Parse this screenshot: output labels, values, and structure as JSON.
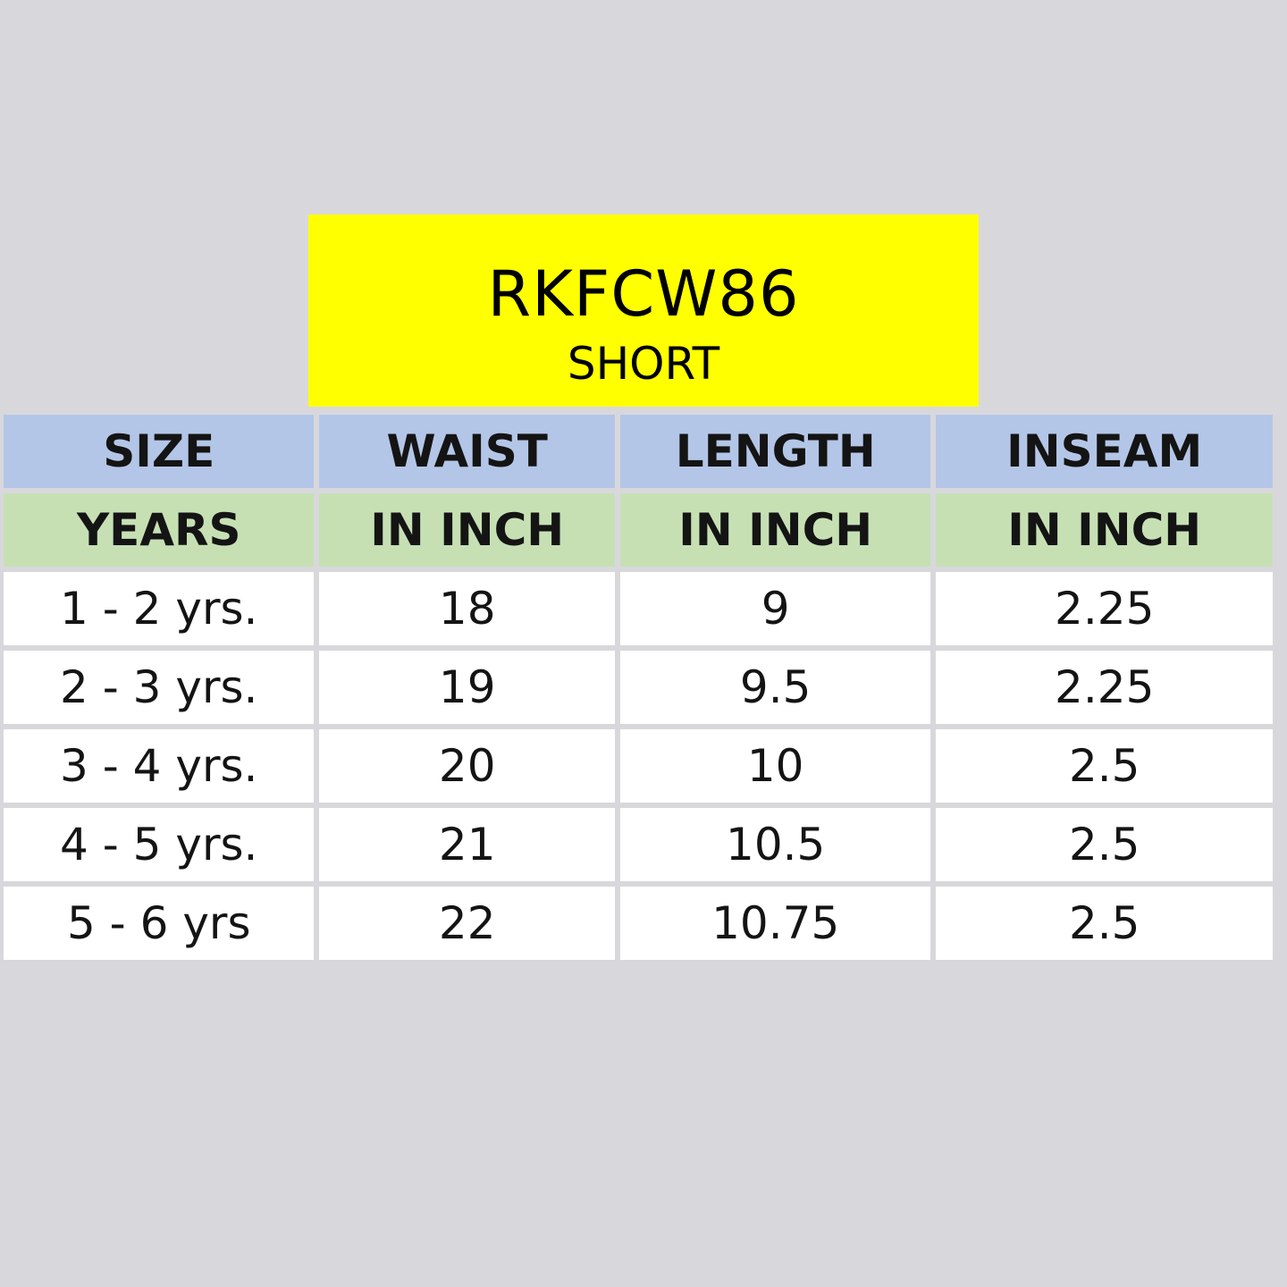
{
  "header": {
    "product_code": "RKFCW86",
    "product_type": "SHORT"
  },
  "table": {
    "headers": [
      "SIZE",
      "WAIST",
      "LENGTH",
      "INSEAM"
    ],
    "units": [
      "YEARS",
      "IN INCH",
      "IN INCH",
      "IN INCH"
    ],
    "rows": [
      [
        "1 - 2 yrs.",
        "18",
        "9",
        "2.25"
      ],
      [
        "2 - 3 yrs.",
        "19",
        "9.5",
        "2.25"
      ],
      [
        "3 - 4 yrs.",
        "20",
        "10",
        "2.5"
      ],
      [
        "4 - 5 yrs.",
        "21",
        "10.5",
        "2.5"
      ],
      [
        "5 - 6 yrs",
        "22",
        "10.75",
        "2.5"
      ]
    ]
  },
  "colors": {
    "background": "#d8d8dc",
    "title_box": "#ffff00",
    "header_row": "#b4c6e7",
    "unit_row": "#c6e0b4",
    "data_row": "#ffffff"
  }
}
